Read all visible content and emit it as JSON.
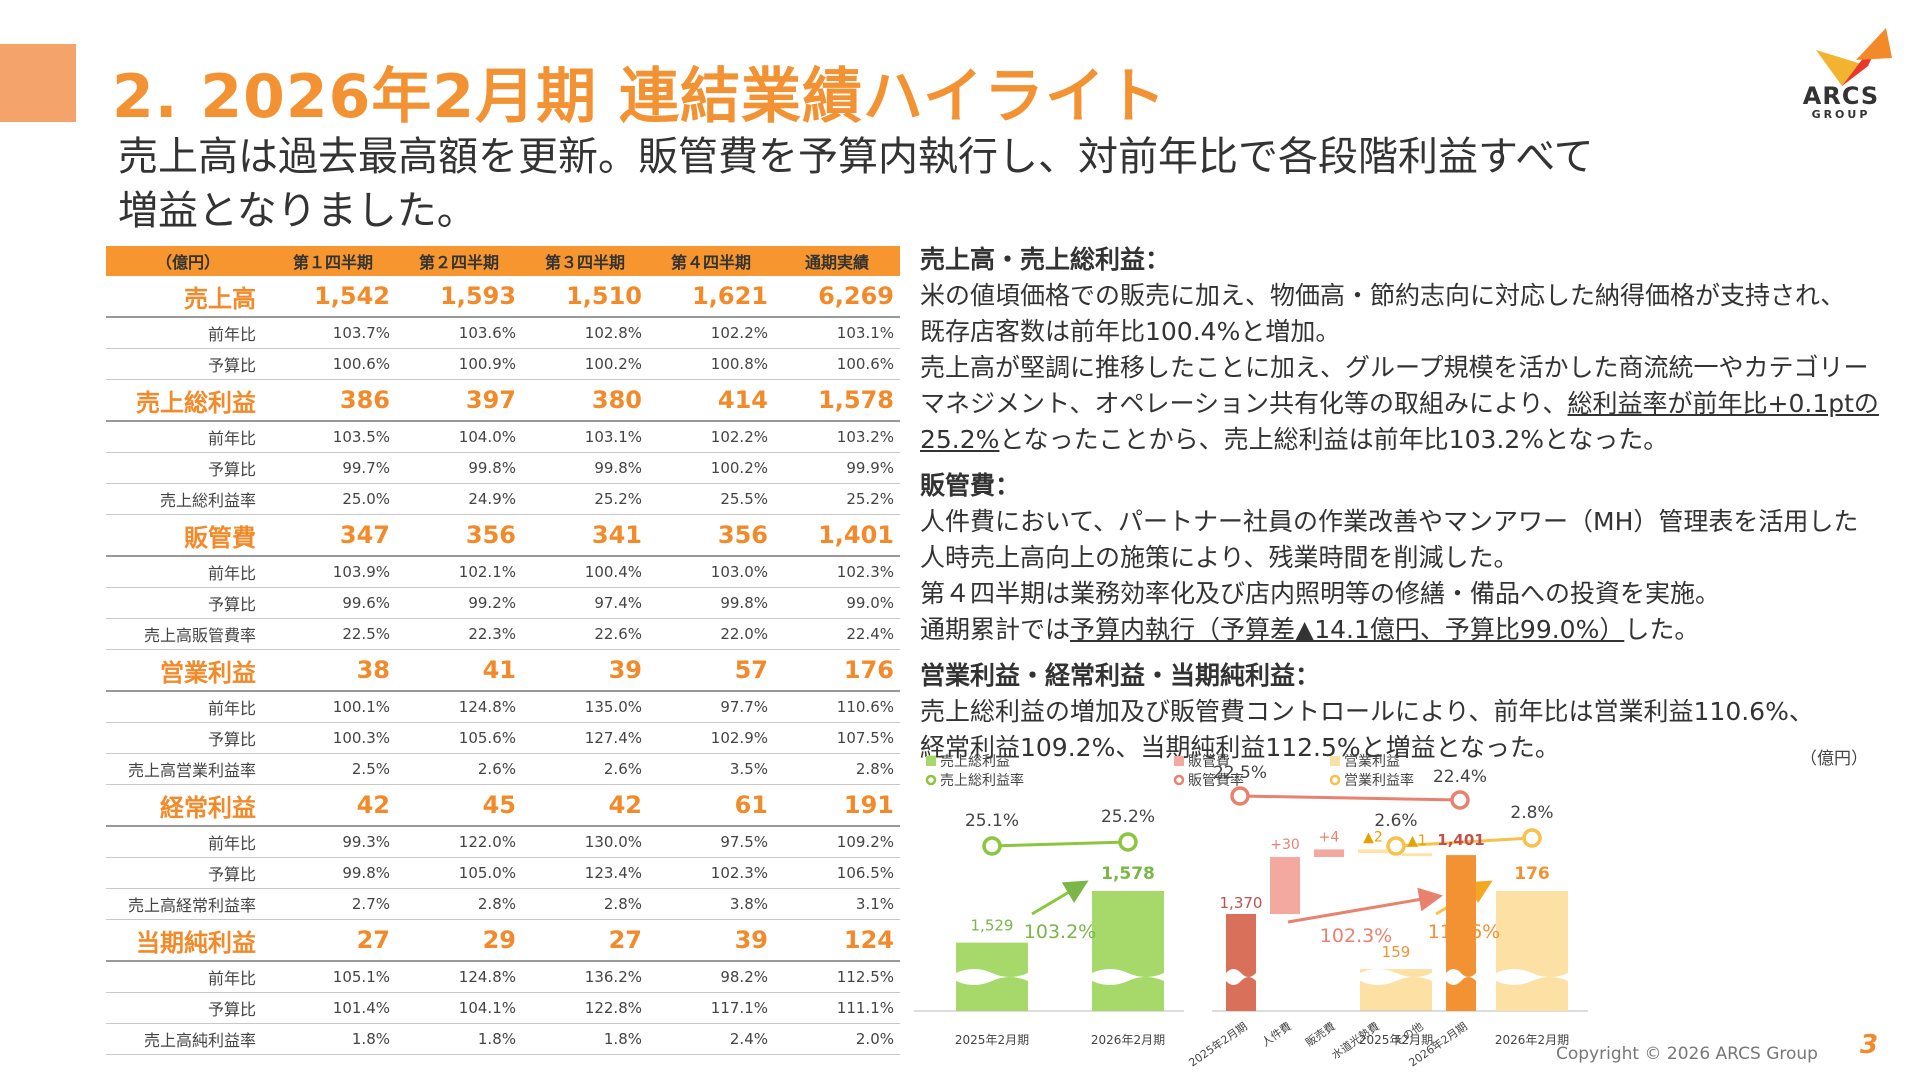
{
  "header": {
    "title": "2. 2026年2月期 連結業績ハイライト",
    "subtitle_lines": [
      "売上高は過去最高額を更新。販管費を予算内執行し、対前年比で各段階利益すべて",
      "増益となりました。"
    ],
    "logo_text": "ARCS",
    "logo_sub": "GROUP"
  },
  "table": {
    "headers": [
      "（億円）",
      "第１四半期",
      "第２四半期",
      "第３四半期",
      "第４四半期",
      "通期実績"
    ],
    "rows": [
      {
        "label": "売上高",
        "main": true,
        "values": [
          "1,542",
          "1,593",
          "1,510",
          "1,621",
          "6,269"
        ]
      },
      {
        "label": "前年比",
        "values": [
          "103.7%",
          "103.6%",
          "102.8%",
          "102.2%",
          "103.1%"
        ]
      },
      {
        "label": "予算比",
        "values": [
          "100.6%",
          "100.9%",
          "100.2%",
          "100.8%",
          "100.6%"
        ]
      },
      {
        "label": "売上総利益",
        "main": true,
        "values": [
          "386",
          "397",
          "380",
          "414",
          "1,578"
        ]
      },
      {
        "label": "前年比",
        "values": [
          "103.5%",
          "104.0%",
          "103.1%",
          "102.2%",
          "103.2%"
        ]
      },
      {
        "label": "予算比",
        "values": [
          "99.7%",
          "99.8%",
          "99.8%",
          "100.2%",
          "99.9%"
        ]
      },
      {
        "label": "売上総利益率",
        "values": [
          "25.0%",
          "24.9%",
          "25.2%",
          "25.5%",
          "25.2%"
        ]
      },
      {
        "label": "販管費",
        "main": true,
        "values": [
          "347",
          "356",
          "341",
          "356",
          "1,401"
        ]
      },
      {
        "label": "前年比",
        "values": [
          "103.9%",
          "102.1%",
          "100.4%",
          "103.0%",
          "102.3%"
        ]
      },
      {
        "label": "予算比",
        "values": [
          "99.6%",
          "99.2%",
          "97.4%",
          "99.8%",
          "99.0%"
        ]
      },
      {
        "label": "売上高販管費率",
        "values": [
          "22.5%",
          "22.3%",
          "22.6%",
          "22.0%",
          "22.4%"
        ]
      },
      {
        "label": "営業利益",
        "main": true,
        "values": [
          "38",
          "41",
          "39",
          "57",
          "176"
        ]
      },
      {
        "label": "前年比",
        "values": [
          "100.1%",
          "124.8%",
          "135.0%",
          "97.7%",
          "110.6%"
        ]
      },
      {
        "label": "予算比",
        "values": [
          "100.3%",
          "105.6%",
          "127.4%",
          "102.9%",
          "107.5%"
        ]
      },
      {
        "label": "売上高営業利益率",
        "values": [
          "2.5%",
          "2.6%",
          "2.6%",
          "3.5%",
          "2.8%"
        ]
      },
      {
        "label": "経常利益",
        "main": true,
        "values": [
          "42",
          "45",
          "42",
          "61",
          "191"
        ]
      },
      {
        "label": "前年比",
        "values": [
          "99.3%",
          "122.0%",
          "130.0%",
          "97.5%",
          "109.2%"
        ]
      },
      {
        "label": "予算比",
        "values": [
          "99.8%",
          "105.0%",
          "123.4%",
          "102.3%",
          "106.5%"
        ]
      },
      {
        "label": "売上高経常利益率",
        "values": [
          "2.7%",
          "2.8%",
          "2.8%",
          "3.8%",
          "3.1%"
        ]
      },
      {
        "label": "当期純利益",
        "main": true,
        "values": [
          "27",
          "29",
          "27",
          "39",
          "124"
        ]
      },
      {
        "label": "前年比",
        "values": [
          "105.1%",
          "124.8%",
          "136.2%",
          "98.2%",
          "112.5%"
        ]
      },
      {
        "label": "予算比",
        "values": [
          "101.4%",
          "104.1%",
          "122.8%",
          "117.1%",
          "111.1%"
        ]
      },
      {
        "label": "売上高純利益率",
        "values": [
          "1.8%",
          "1.8%",
          "1.8%",
          "2.4%",
          "2.0%"
        ]
      }
    ]
  },
  "comments": {
    "sales": {
      "head": "売上高・売上総利益：",
      "line1": "米の値頃価格での販売に加え、物価高・節約志向に対応した納得価格が支持され、",
      "line2": "既存店客数は前年比100.4%と増加。",
      "line3": "売上高が堅調に推移したことに加え、グループ規模を活かした商流統一やカテゴリー",
      "line4a": "マネジメント、オペレーション共有化等の取組みにより、",
      "line4u": "総利益率が前年比+0.1ptの",
      "line5u": "25.2%",
      "line5b": "となったことから、売上総利益は前年比103.2%となった。"
    },
    "sga": {
      "head": "販管費：",
      "line1": "人件費において、パートナー社員の作業改善やマンアワー（MH）管理表を活用した",
      "line2": "人時売上高向上の施策により、残業時間を削減した。",
      "line3": "第４四半期は業務効率化及び店内照明等の修繕・備品への投資を実施。",
      "line4a": "通期累計では",
      "line4u": "予算内執行（予算差▲14.1億円、予算比99.0%）",
      "line4b": "した。"
    },
    "profit": {
      "head": "営業利益・経常利益・当期純利益：",
      "line1": "売上総利益の増加及び販管費コントロールにより、前年比は営業利益110.6%、",
      "line2": "経常利益109.2%、当期純利益112.5%と増益となった。"
    }
  },
  "charts_unit": "（億円）",
  "chart_data": [
    {
      "type": "bar",
      "legend": [
        "売上総利益",
        "売上総利益率"
      ],
      "categories": [
        "2025年2月期",
        "2026年2月期"
      ],
      "series": [
        {
          "name": "売上総利益",
          "values": [
            1529,
            1578
          ]
        },
        {
          "name": "売上総利益率",
          "values": [
            25.1,
            25.2
          ]
        }
      ],
      "value_labels": [
        "1,529",
        "1,578"
      ],
      "rate_labels": [
        "25.1%",
        "25.2%"
      ],
      "growth_label": "103.2%",
      "colors": {
        "bar": "#a6d96a",
        "line": "#8cc63f",
        "label": "#7ab648"
      }
    },
    {
      "type": "waterfall",
      "legend": [
        "販管費",
        "販管費率"
      ],
      "categories": [
        "2025年2月期",
        "人件費",
        "販売費",
        "水道光熱費",
        "その他",
        "2026年2月期"
      ],
      "values": [
        1370,
        30,
        4,
        -2,
        -1,
        1401
      ],
      "value_labels": [
        "1,370",
        "+30",
        "+4",
        "▲2",
        "▲1",
        "1,401"
      ],
      "rate_labels": [
        "22.5%",
        "22.4%"
      ],
      "rates": [
        22.5,
        22.4
      ],
      "growth_label": "102.3%",
      "colors": {
        "start": "#d9705a",
        "up": "#f4a9a0",
        "down": "#fce4a8",
        "end": "#f39232",
        "line": "#e8826f"
      }
    },
    {
      "type": "bar",
      "legend": [
        "営業利益",
        "営業利益率"
      ],
      "categories": [
        "2025年2月期",
        "2026年2月期"
      ],
      "series": [
        {
          "name": "営業利益",
          "values": [
            159,
            176
          ]
        },
        {
          "name": "営業利益率",
          "values": [
            2.6,
            2.8
          ]
        }
      ],
      "value_labels": [
        "159",
        "176"
      ],
      "rate_labels": [
        "2.6%",
        "2.8%"
      ],
      "growth_label": "110.6%",
      "colors": {
        "bar": "#fde0a4",
        "line": "#f9c04a",
        "label": "#f39232"
      }
    }
  ],
  "footer": {
    "copyright": "Copyright © 2026 ARCS Group",
    "page": "3"
  }
}
